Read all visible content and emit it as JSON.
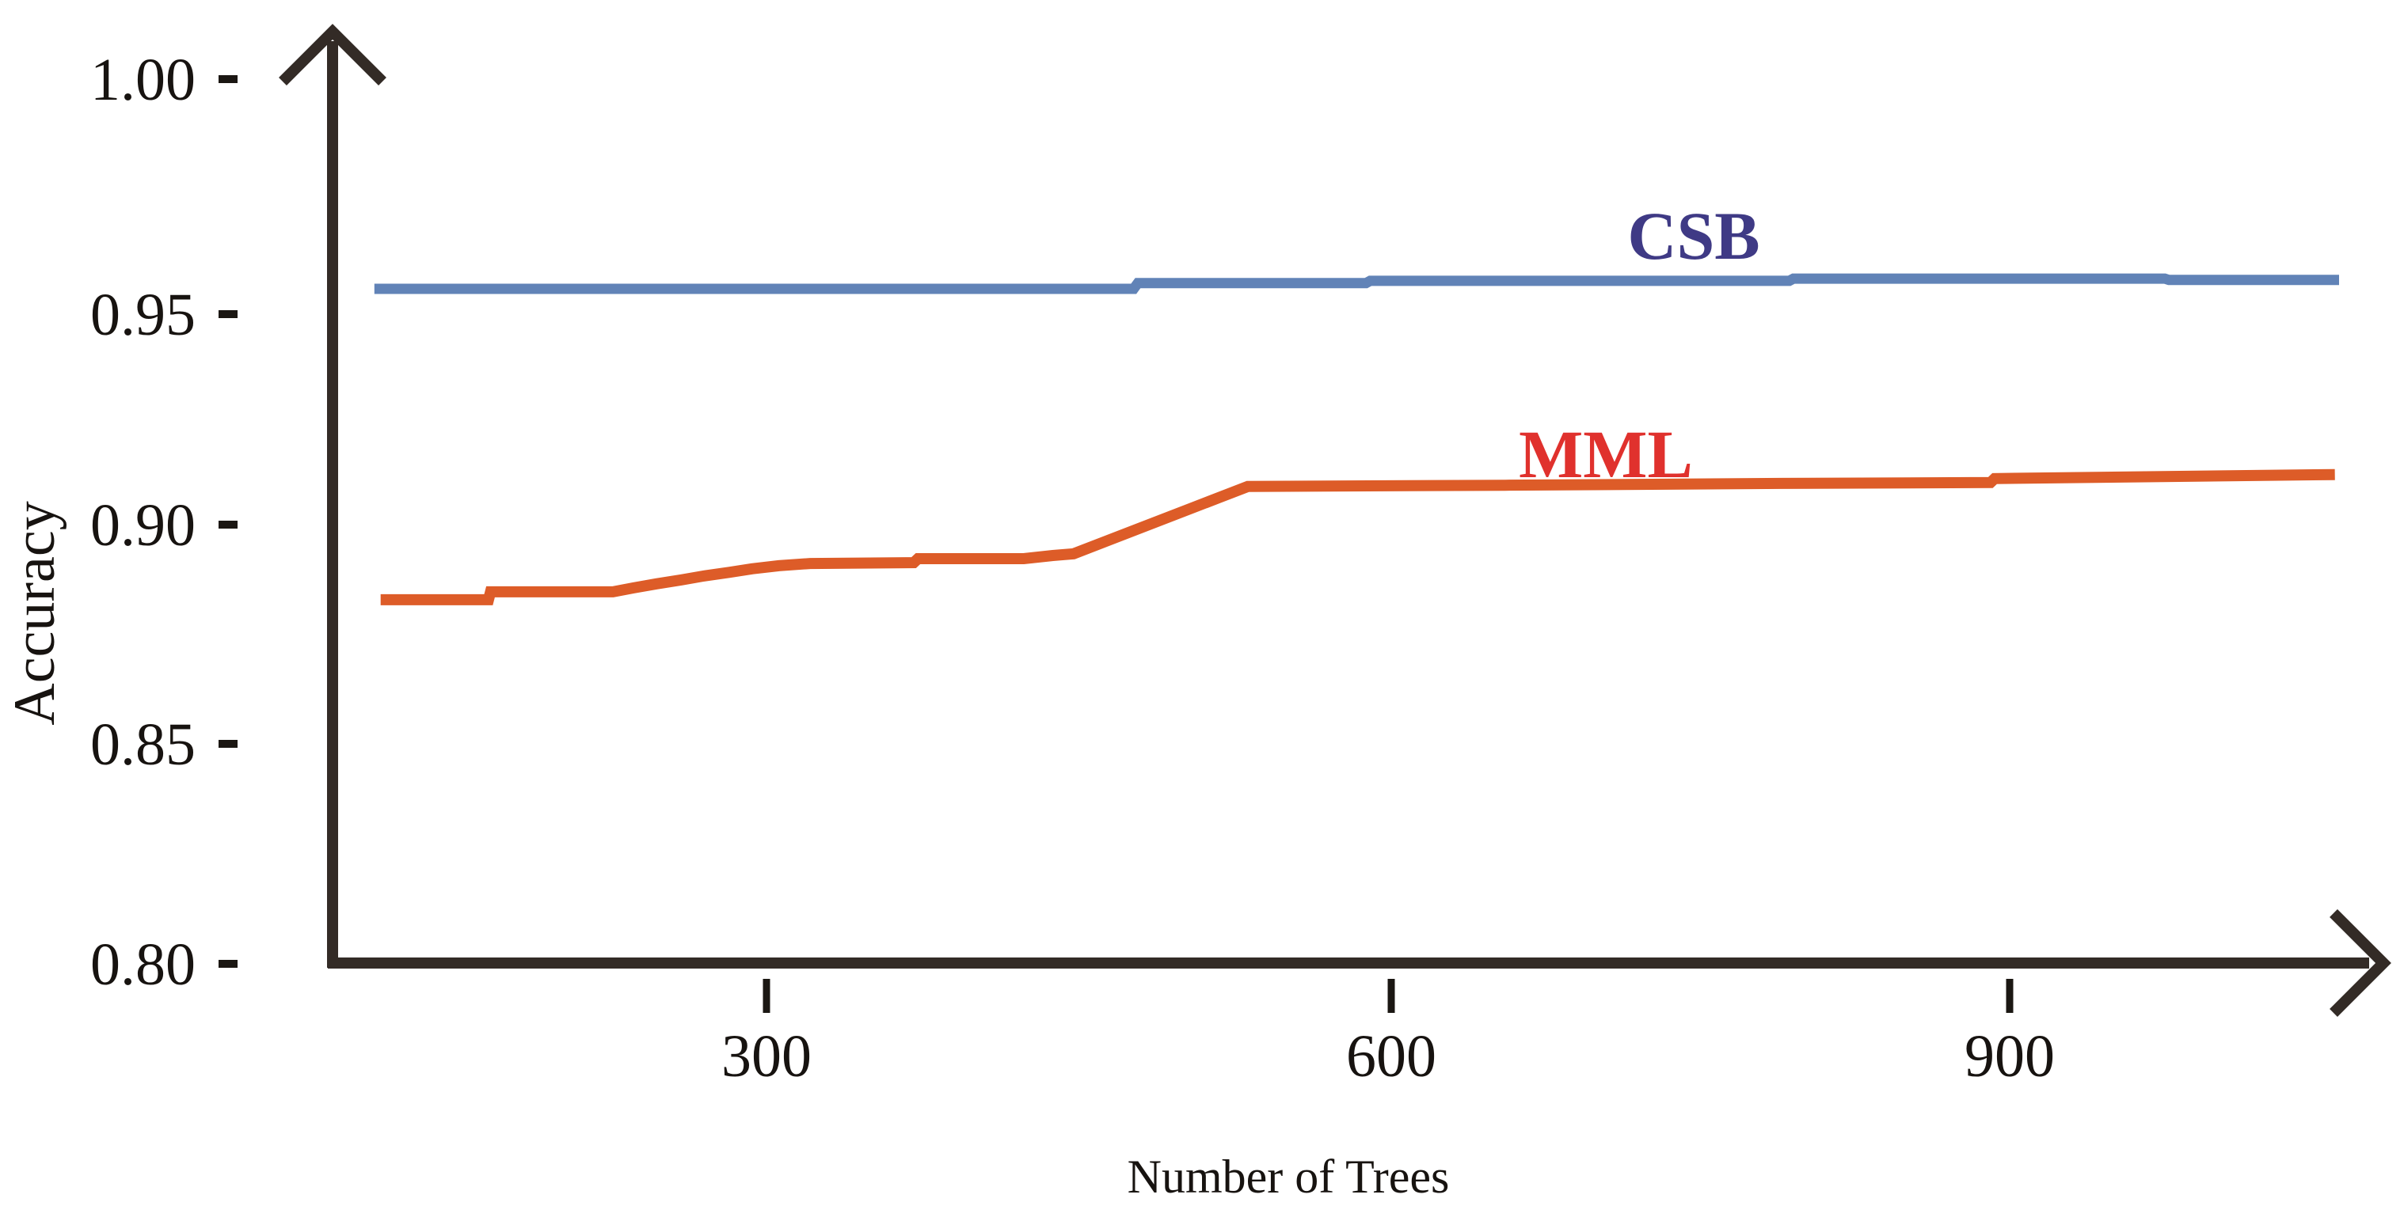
{
  "figure": {
    "background": "#ffffff",
    "y_axis_title": "Accuracy",
    "x_axis_title": "Number of Trees"
  },
  "axes": {
    "y_tick_labels": [
      "1.00",
      "0.95",
      "0.90",
      "0.85",
      "0.80"
    ],
    "x_tick_labels": [
      "300",
      "600",
      "900"
    ]
  },
  "colors": {
    "axis": "#332b26",
    "tick_mark": "#1b1713",
    "tick_text": "#171310",
    "csb_line": "#6183b7",
    "csb_label": "#3f3a85",
    "mml_line": "#dd5c28",
    "mml_label": "#e0312d"
  },
  "chart_data": {
    "type": "line",
    "title": "",
    "xlabel": "Number of Trees",
    "ylabel": "Accuracy",
    "x_tick_values": [
      300,
      600,
      900
    ],
    "y_tick_values": [
      1.0,
      0.95,
      0.9,
      0.85,
      0.8
    ],
    "xlim": [
      90,
      1080
    ],
    "ylim": [
      0.8,
      1.005
    ],
    "grid": false,
    "legend_position": "inline-labels-above-lines",
    "series": [
      {
        "name": "CSB",
        "color": "#6183b7",
        "label_color": "#3f3a85",
        "points": [
          [
            111,
            0.9526
          ],
          [
            477,
            0.9526
          ],
          [
            479,
            0.9539
          ],
          [
            589,
            0.9539
          ],
          [
            591,
            0.9544
          ],
          [
            793,
            0.9544
          ],
          [
            795,
            0.9549
          ],
          [
            974,
            0.9549
          ],
          [
            976,
            0.9546
          ],
          [
            1058,
            0.9546
          ]
        ]
      },
      {
        "name": "MML",
        "color": "#dd5c28",
        "label_color": "#e0312d",
        "points": [
          [
            114,
            0.8823
          ],
          [
            166,
            0.8823
          ],
          [
            167,
            0.8841
          ],
          [
            226,
            0.8841
          ],
          [
            236,
            0.885
          ],
          [
            247,
            0.8859
          ],
          [
            259,
            0.8868
          ],
          [
            270,
            0.8877
          ],
          [
            282,
            0.8885
          ],
          [
            293,
            0.8893
          ],
          [
            306,
            0.89
          ],
          [
            321,
            0.8905
          ],
          [
            371,
            0.8907
          ],
          [
            373,
            0.8916
          ],
          [
            424,
            0.8916
          ],
          [
            438,
            0.8923
          ],
          [
            448,
            0.8927
          ],
          [
            532,
            0.9079
          ],
          [
            656,
            0.9082
          ],
          [
            789,
            0.9086
          ],
          [
            890,
            0.9088
          ],
          [
            892,
            0.9097
          ],
          [
            1056,
            0.9106
          ]
        ]
      }
    ]
  }
}
